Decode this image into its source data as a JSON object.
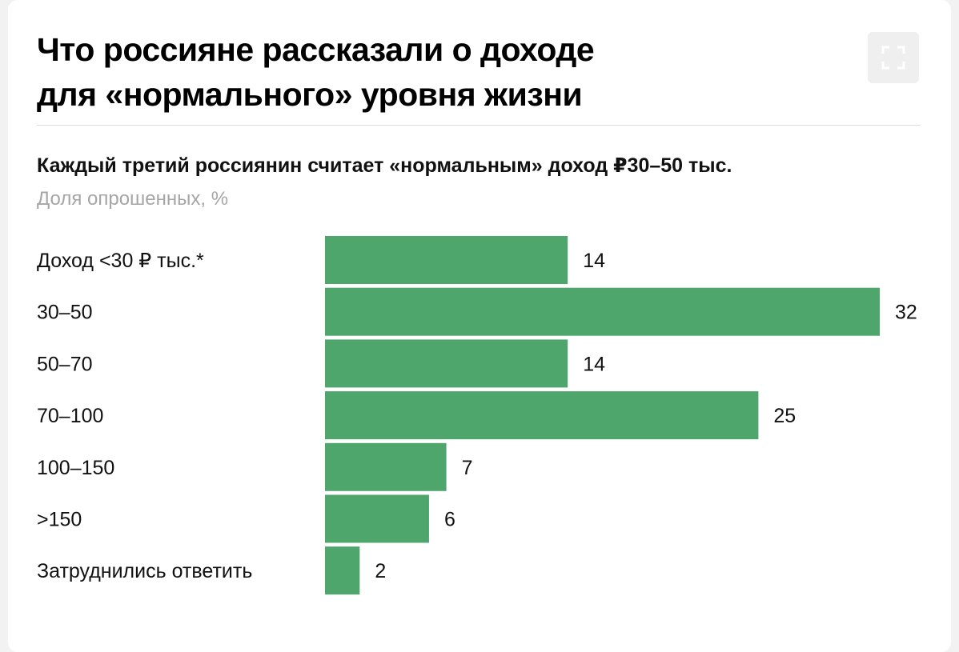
{
  "title_line1": "Что россияне рассказали о доходе",
  "title_line2": "для «нормального» уровня жизни",
  "expand_icon": "expand-icon",
  "colors": {
    "bar": "#4ea66d"
  },
  "chart_data": {
    "type": "bar",
    "orientation": "horizontal",
    "title": "Каждый третий россиянин считает «нормальным» доход ₽30–50 тыс.",
    "units_label": "Доля опрошенных, %",
    "categories": [
      "Доход <30 ₽ тыс.*",
      "30–50",
      "50–70",
      "70–100",
      "100–150",
      ">150",
      "Затруднились ответить"
    ],
    "values": [
      14,
      32,
      14,
      25,
      7,
      6,
      2
    ],
    "xlim": [
      0,
      32
    ],
    "grid": false,
    "legend": "none"
  }
}
